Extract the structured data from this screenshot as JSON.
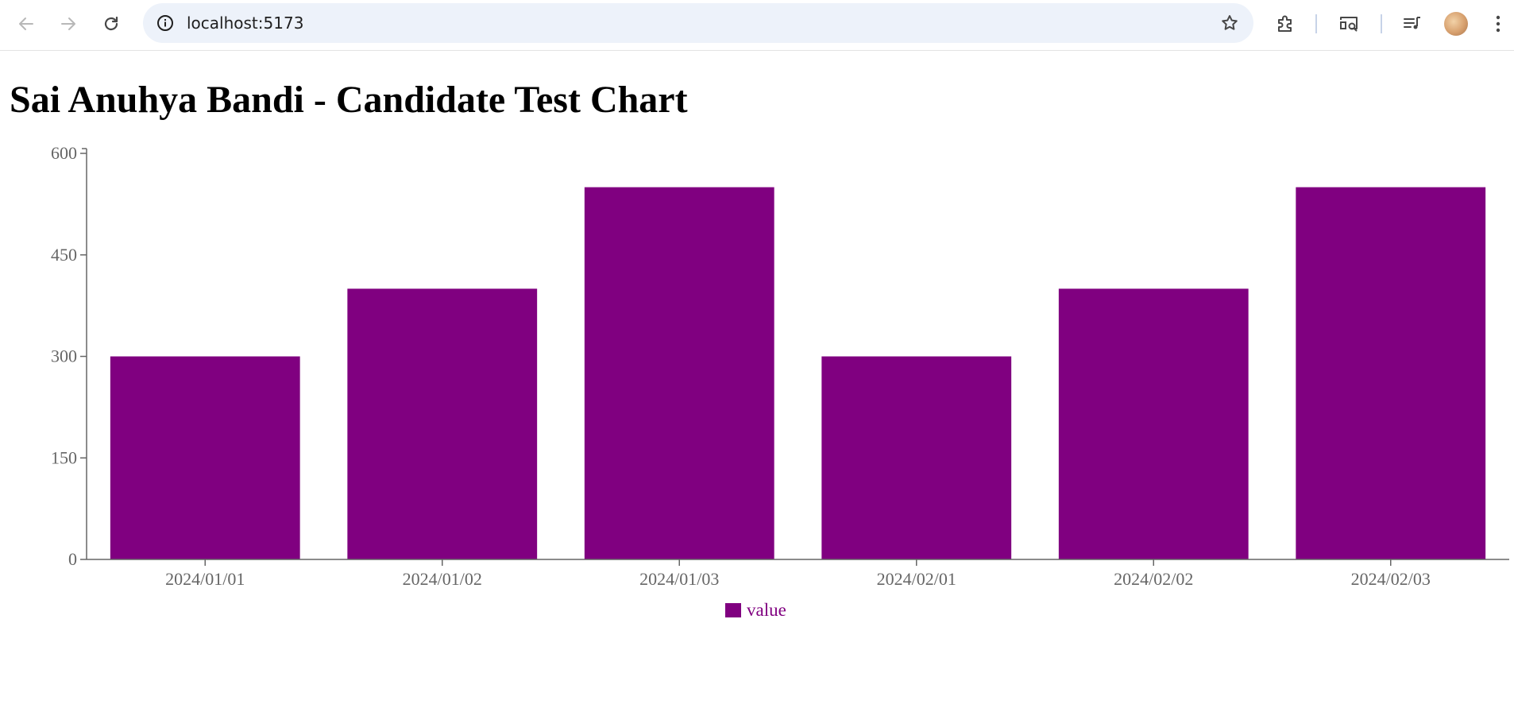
{
  "browser": {
    "url": "localhost:5173",
    "icons": {
      "back": "arrow-left-icon",
      "forward": "arrow-right-icon",
      "reload": "reload-icon",
      "site_info": "info-icon",
      "bookmark": "star-icon",
      "extensions": "puzzle-icon",
      "cast": "cast-search-icon",
      "media": "media-queue-icon",
      "profile": "avatar",
      "menu": "kebab-menu-icon"
    }
  },
  "page": {
    "title": "Sai Anuhya Bandi - Candidate Test Chart"
  },
  "chart_data": {
    "type": "bar",
    "categories": [
      "2024/01/01",
      "2024/01/02",
      "2024/01/03",
      "2024/02/01",
      "2024/02/02",
      "2024/02/03"
    ],
    "series": [
      {
        "name": "value",
        "values": [
          300,
          400,
          550,
          300,
          400,
          550
        ],
        "color": "#800080"
      }
    ],
    "yticks": [
      0,
      150,
      300,
      450,
      600
    ],
    "ylim": [
      0,
      600
    ],
    "grid": false,
    "legend_position": "bottom-center",
    "axis_color": "#666666"
  }
}
